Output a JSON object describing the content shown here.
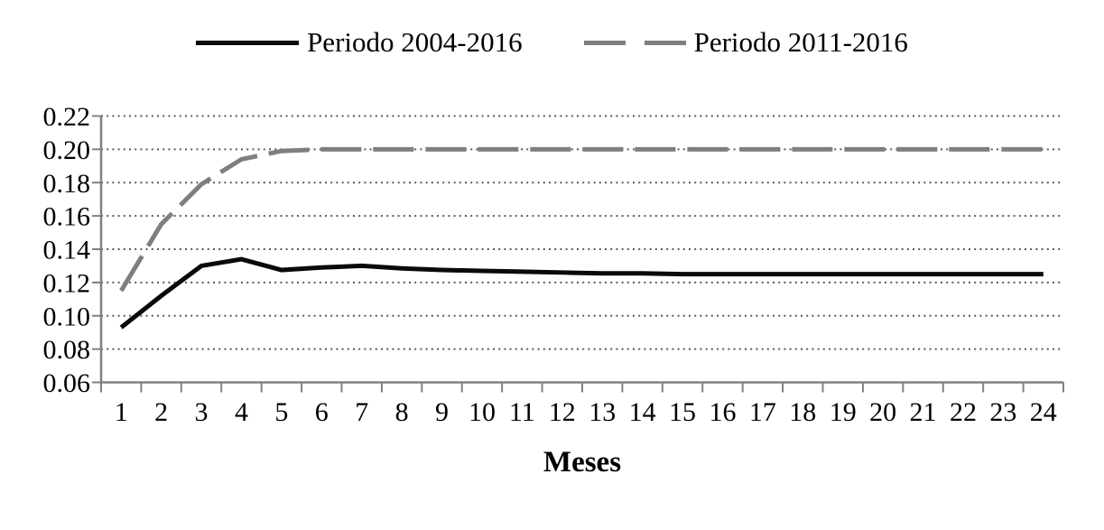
{
  "legend": {
    "items": [
      {
        "label": "Periodo 2004-2016",
        "color": "#0a0a0a",
        "style": "solid"
      },
      {
        "label": "Periodo 2011-2016",
        "color": "#7f7f7f",
        "style": "dashed"
      }
    ]
  },
  "chart_data": {
    "type": "line",
    "title": "",
    "xlabel": "Meses",
    "ylabel": "",
    "categories": [
      1,
      2,
      3,
      4,
      5,
      6,
      7,
      8,
      9,
      10,
      11,
      12,
      13,
      14,
      15,
      16,
      17,
      18,
      19,
      20,
      21,
      22,
      23,
      24
    ],
    "series": [
      {
        "name": "Periodo 2004-2016",
        "color": "#0a0a0a",
        "dash": "solid",
        "values": [
          0.093,
          0.112,
          0.13,
          0.134,
          0.1275,
          0.129,
          0.13,
          0.1285,
          0.1275,
          0.127,
          0.1265,
          0.126,
          0.1255,
          0.1255,
          0.125,
          0.125,
          0.125,
          0.125,
          0.125,
          0.125,
          0.125,
          0.125,
          0.125,
          0.125
        ]
      },
      {
        "name": "Periodo 2011-2016",
        "color": "#7f7f7f",
        "dash": "dashed",
        "values": [
          0.115,
          0.155,
          0.179,
          0.194,
          0.199,
          0.2,
          0.2,
          0.2,
          0.2,
          0.2,
          0.2,
          0.2,
          0.2,
          0.2,
          0.2,
          0.2,
          0.2,
          0.2,
          0.2,
          0.2,
          0.2,
          0.2,
          0.2,
          0.2
        ]
      }
    ],
    "ylim": [
      0.06,
      0.22
    ],
    "yticks": [
      0.06,
      0.08,
      0.1,
      0.12,
      0.14,
      0.16,
      0.18,
      0.2,
      0.22
    ],
    "ytick_labels": [
      "0.06",
      "0.08",
      "0.10",
      "0.12",
      "0.14",
      "0.16",
      "0.18",
      "0.20",
      "0.22"
    ],
    "grid": "horizontal-dotted",
    "legend_position": "top"
  },
  "colors": {
    "background": "#ffffff",
    "axis": "#808080",
    "gridline": "#595959",
    "text": "#000000"
  }
}
